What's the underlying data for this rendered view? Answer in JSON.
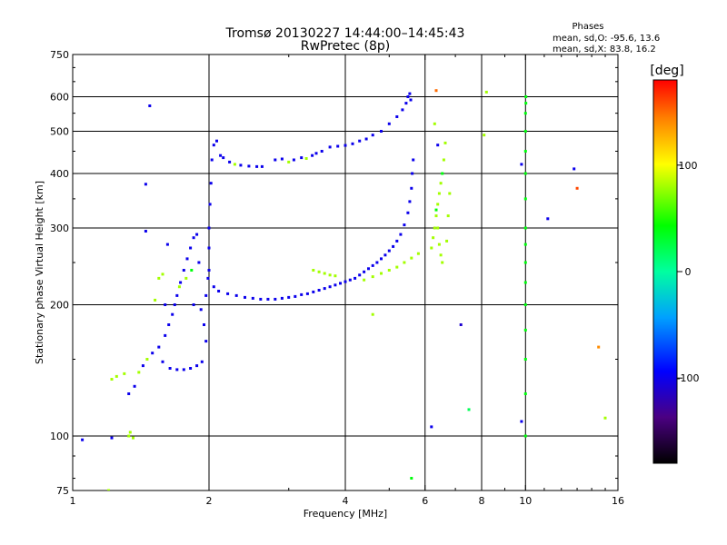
{
  "header": {
    "title": "Tromsø 20130227 14:44:00–14:45:43",
    "subtitle": "RwPretec (8p)"
  },
  "phases_box": {
    "title": "Phases",
    "line_o": "mean, sd,O: -95.6, 13.6",
    "line_x": "mean, sd,X:  83.8, 16.2"
  },
  "colorbar": {
    "label": "[deg]",
    "ticks": [
      "100",
      "0",
      "-100"
    ],
    "tick_values": [
      100,
      0,
      -100
    ],
    "range": [
      -180,
      180
    ]
  },
  "chart_data": {
    "type": "scatter",
    "title": "Tromsø 20130227 14:44:00–14:45:43",
    "subtitle": "RwPretec (8p)",
    "xlabel": "Frequency [MHz]",
    "ylabel": "Stationary phase Virtual Height [km]",
    "x_scale": "log",
    "y_scale": "log",
    "xlim": [
      1,
      16
    ],
    "ylim": [
      75,
      750
    ],
    "x_ticks": [
      1,
      2,
      4,
      6,
      8,
      10,
      16
    ],
    "x_tick_labels": [
      "1",
      "2",
      "4",
      "6",
      "8",
      "10",
      "16"
    ],
    "y_ticks": [
      75,
      100,
      200,
      300,
      400,
      500,
      600,
      750
    ],
    "y_tick_labels": [
      "75",
      "100",
      "200",
      "300",
      "400",
      "500",
      "600",
      "750"
    ],
    "grid_x": [
      2,
      4,
      6,
      8,
      10
    ],
    "grid_y": [
      100,
      200,
      300,
      400,
      500,
      600
    ],
    "color_scale": "phase [deg], rainbow from -180 (black/purple) to 180 (red)",
    "series": [
      {
        "points": [
          [
            1.05,
            98,
            -100
          ],
          [
            1.22,
            99,
            -100
          ],
          [
            1.33,
            100,
            80
          ],
          [
            1.34,
            102,
            80
          ],
          [
            1.36,
            99,
            80
          ],
          [
            1.22,
            135,
            80
          ],
          [
            1.25,
            137,
            80
          ],
          [
            1.3,
            139,
            80
          ],
          [
            1.33,
            125,
            -100
          ],
          [
            1.37,
            130,
            -100
          ],
          [
            1.4,
            140,
            80
          ],
          [
            1.43,
            145,
            -100
          ],
          [
            1.46,
            150,
            80
          ],
          [
            1.5,
            155,
            -100
          ],
          [
            1.55,
            160,
            -100
          ],
          [
            1.6,
            170,
            -100
          ],
          [
            1.63,
            180,
            -100
          ],
          [
            1.66,
            190,
            -100
          ],
          [
            1.68,
            200,
            -100
          ],
          [
            1.7,
            210,
            -100
          ],
          [
            1.73,
            225,
            -100
          ],
          [
            1.76,
            240,
            -100
          ],
          [
            1.79,
            255,
            -100
          ],
          [
            1.82,
            270,
            -100
          ],
          [
            1.85,
            285,
            -100
          ],
          [
            1.88,
            290,
            -100
          ],
          [
            1.72,
            220,
            80
          ],
          [
            1.78,
            230,
            80
          ],
          [
            1.83,
            240,
            40
          ],
          [
            1.9,
            250,
            -100
          ],
          [
            1.55,
            230,
            80
          ],
          [
            1.58,
            235,
            80
          ],
          [
            1.52,
            205,
            80
          ],
          [
            1.6,
            200,
            -100
          ],
          [
            1.85,
            200,
            -100
          ],
          [
            1.92,
            195,
            -100
          ],
          [
            1.95,
            180,
            -100
          ],
          [
            1.97,
            165,
            -100
          ],
          [
            1.93,
            148,
            -100
          ],
          [
            1.88,
            145,
            -100
          ],
          [
            1.82,
            143,
            -100
          ],
          [
            1.76,
            142,
            -100
          ],
          [
            1.7,
            142,
            -100
          ],
          [
            1.64,
            143,
            -100
          ],
          [
            1.58,
            148,
            -100
          ],
          [
            1.97,
            210,
            -100
          ],
          [
            1.99,
            230,
            -100
          ],
          [
            2.0,
            240,
            -100
          ],
          [
            2.0,
            270,
            -100
          ],
          [
            2.0,
            300,
            -100
          ],
          [
            2.01,
            340,
            -100
          ],
          [
            2.02,
            380,
            -100
          ],
          [
            2.03,
            430,
            -100
          ],
          [
            2.05,
            465,
            -100
          ],
          [
            2.08,
            475,
            -100
          ],
          [
            2.12,
            440,
            -100
          ],
          [
            2.15,
            435,
            -100
          ],
          [
            2.22,
            425,
            -100
          ],
          [
            2.28,
            420,
            80
          ],
          [
            2.35,
            418,
            -100
          ],
          [
            2.45,
            416,
            -100
          ],
          [
            2.55,
            415,
            -100
          ],
          [
            2.62,
            415,
            -100
          ],
          [
            2.8,
            430,
            -100
          ],
          [
            2.9,
            432,
            -100
          ],
          [
            3.0,
            425,
            80
          ],
          [
            3.08,
            430,
            -100
          ],
          [
            3.2,
            435,
            -100
          ],
          [
            3.28,
            433,
            80
          ],
          [
            3.38,
            440,
            -100
          ],
          [
            3.45,
            445,
            -100
          ],
          [
            3.55,
            450,
            -100
          ],
          [
            3.7,
            460,
            -100
          ],
          [
            3.85,
            462,
            -100
          ],
          [
            4.0,
            464,
            -100
          ],
          [
            4.15,
            468,
            -100
          ],
          [
            4.3,
            475,
            -100
          ],
          [
            4.45,
            480,
            -100
          ],
          [
            4.6,
            490,
            -100
          ],
          [
            4.8,
            500,
            -100
          ],
          [
            5.0,
            520,
            -100
          ],
          [
            5.2,
            540,
            -100
          ],
          [
            5.35,
            560,
            -100
          ],
          [
            5.45,
            580,
            -100
          ],
          [
            5.5,
            600,
            -100
          ],
          [
            5.55,
            610,
            -100
          ],
          [
            5.58,
            590,
            -100
          ],
          [
            2.05,
            220,
            -100
          ],
          [
            2.1,
            215,
            -100
          ],
          [
            2.2,
            212,
            -100
          ],
          [
            2.3,
            210,
            -100
          ],
          [
            2.4,
            208,
            -100
          ],
          [
            2.5,
            207,
            -100
          ],
          [
            2.6,
            206,
            -100
          ],
          [
            2.7,
            206,
            -100
          ],
          [
            2.8,
            206,
            -100
          ],
          [
            2.9,
            207,
            -100
          ],
          [
            3.0,
            208,
            -100
          ],
          [
            3.1,
            209,
            -100
          ],
          [
            3.2,
            211,
            -100
          ],
          [
            3.3,
            212,
            -100
          ],
          [
            3.4,
            214,
            -100
          ],
          [
            3.5,
            216,
            -100
          ],
          [
            3.6,
            218,
            -100
          ],
          [
            3.7,
            220,
            -100
          ],
          [
            3.8,
            222,
            -100
          ],
          [
            3.9,
            224,
            -100
          ],
          [
            4.0,
            226,
            -100
          ],
          [
            4.1,
            228,
            -100
          ],
          [
            4.2,
            230,
            -100
          ],
          [
            4.3,
            234,
            -100
          ],
          [
            4.4,
            238,
            -100
          ],
          [
            4.5,
            242,
            -100
          ],
          [
            4.6,
            246,
            -100
          ],
          [
            4.7,
            250,
            -100
          ],
          [
            4.8,
            255,
            -100
          ],
          [
            4.9,
            260,
            -100
          ],
          [
            5.0,
            266,
            -100
          ],
          [
            5.1,
            272,
            -100
          ],
          [
            5.2,
            280,
            -100
          ],
          [
            5.3,
            290,
            -100
          ],
          [
            5.4,
            305,
            -100
          ],
          [
            5.5,
            325,
            -100
          ],
          [
            5.55,
            345,
            -100
          ],
          [
            5.6,
            370,
            -100
          ],
          [
            5.62,
            400,
            -100
          ],
          [
            5.65,
            430,
            -100
          ],
          [
            3.4,
            240,
            80
          ],
          [
            3.5,
            238,
            80
          ],
          [
            3.6,
            236,
            80
          ],
          [
            3.7,
            234,
            80
          ],
          [
            3.8,
            233,
            80
          ],
          [
            4.4,
            228,
            80
          ],
          [
            4.6,
            232,
            80
          ],
          [
            4.8,
            236,
            80
          ],
          [
            5.0,
            240,
            80
          ],
          [
            5.2,
            244,
            80
          ],
          [
            5.4,
            250,
            80
          ],
          [
            5.6,
            256,
            80
          ],
          [
            5.8,
            262,
            80
          ],
          [
            6.2,
            270,
            80
          ],
          [
            6.25,
            285,
            80
          ],
          [
            6.3,
            300,
            80
          ],
          [
            6.35,
            320,
            80
          ],
          [
            6.4,
            340,
            80
          ],
          [
            6.45,
            360,
            80
          ],
          [
            6.5,
            380,
            80
          ],
          [
            6.55,
            400,
            40
          ],
          [
            6.6,
            430,
            80
          ],
          [
            6.65,
            470,
            80
          ],
          [
            6.55,
            250,
            80
          ],
          [
            6.5,
            260,
            80
          ],
          [
            6.45,
            275,
            80
          ],
          [
            6.4,
            300,
            80
          ],
          [
            6.35,
            330,
            40
          ],
          [
            6.7,
            280,
            80
          ],
          [
            6.75,
            320,
            80
          ],
          [
            6.8,
            360,
            80
          ],
          [
            10.0,
            100,
            40
          ],
          [
            10.0,
            150,
            40
          ],
          [
            10.0,
            200,
            40
          ],
          [
            10.0,
            250,
            40
          ],
          [
            10.0,
            300,
            40
          ],
          [
            10.0,
            350,
            40
          ],
          [
            10.0,
            400,
            40
          ],
          [
            10.0,
            450,
            40
          ],
          [
            10.0,
            500,
            40
          ],
          [
            10.0,
            550,
            40
          ],
          [
            10.02,
            600,
            40
          ],
          [
            10.02,
            580,
            40
          ],
          [
            10.0,
            125,
            40
          ],
          [
            10.0,
            175,
            40
          ],
          [
            10.0,
            225,
            40
          ],
          [
            10.0,
            275,
            40
          ],
          [
            1.48,
            572,
            -100
          ],
          [
            1.45,
            378,
            -100
          ],
          [
            1.45,
            295,
            -100
          ],
          [
            1.62,
            275,
            -100
          ],
          [
            1.2,
            75,
            80
          ],
          [
            6.35,
            620,
            150
          ],
          [
            8.2,
            615,
            80
          ],
          [
            8.1,
            490,
            80
          ],
          [
            6.3,
            520,
            80
          ],
          [
            6.4,
            465,
            -100
          ],
          [
            4.6,
            190,
            80
          ],
          [
            6.2,
            105,
            -100
          ],
          [
            7.2,
            180,
            -110
          ],
          [
            7.5,
            115,
            20
          ],
          [
            11.2,
            315,
            -100
          ],
          [
            12.8,
            410,
            -100
          ],
          [
            13.0,
            370,
            160
          ],
          [
            14.5,
            160,
            140
          ],
          [
            15.0,
            110,
            80
          ],
          [
            9.8,
            108,
            -100
          ],
          [
            9.8,
            420,
            -100
          ],
          [
            5.6,
            80,
            40
          ]
        ]
      }
    ]
  }
}
